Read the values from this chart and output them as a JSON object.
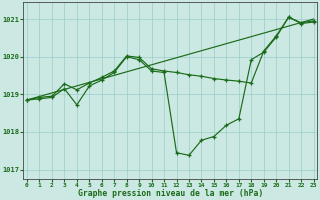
{
  "title": "Graphe pression niveau de la mer (hPa)",
  "bg_color": "#cce8e2",
  "grid_color": "#99cccc",
  "line_color": "#1a6b1a",
  "xlim": [
    -0.3,
    23.3
  ],
  "ylim": [
    1016.75,
    1021.45
  ],
  "yticks": [
    1017,
    1018,
    1019,
    1020,
    1021
  ],
  "xticks": [
    0,
    1,
    2,
    3,
    4,
    5,
    6,
    7,
    8,
    9,
    10,
    11,
    12,
    13,
    14,
    15,
    16,
    17,
    18,
    19,
    20,
    21,
    22,
    23
  ],
  "series_main": [
    [
      0,
      1018.85
    ],
    [
      1,
      1018.88
    ],
    [
      2,
      1018.92
    ],
    [
      3,
      1019.15
    ],
    [
      4,
      1018.72
    ],
    [
      5,
      1019.22
    ],
    [
      6,
      1019.38
    ],
    [
      7,
      1019.58
    ],
    [
      8,
      1020.0
    ],
    [
      9,
      1019.92
    ],
    [
      10,
      1019.62
    ],
    [
      11,
      1019.58
    ],
    [
      12,
      1017.45
    ],
    [
      13,
      1017.38
    ],
    [
      14,
      1017.78
    ],
    [
      15,
      1017.88
    ],
    [
      16,
      1018.18
    ],
    [
      17,
      1018.35
    ],
    [
      18,
      1019.92
    ],
    [
      19,
      1020.12
    ],
    [
      20,
      1020.52
    ],
    [
      21,
      1021.05
    ],
    [
      22,
      1020.88
    ],
    [
      23,
      1020.92
    ]
  ],
  "series_smooth": [
    [
      0,
      1018.85
    ],
    [
      1,
      1018.92
    ],
    [
      2,
      1018.95
    ],
    [
      3,
      1019.28
    ],
    [
      4,
      1019.12
    ],
    [
      5,
      1019.3
    ],
    [
      6,
      1019.45
    ],
    [
      7,
      1019.62
    ],
    [
      8,
      1020.02
    ],
    [
      9,
      1019.98
    ],
    [
      10,
      1019.68
    ],
    [
      11,
      1019.62
    ],
    [
      12,
      1019.58
    ],
    [
      13,
      1019.52
    ],
    [
      14,
      1019.48
    ],
    [
      15,
      1019.42
    ],
    [
      16,
      1019.38
    ],
    [
      17,
      1019.35
    ],
    [
      18,
      1019.3
    ],
    [
      19,
      1020.15
    ],
    [
      20,
      1020.55
    ],
    [
      21,
      1021.05
    ],
    [
      22,
      1020.9
    ],
    [
      23,
      1020.95
    ]
  ],
  "series_line": [
    [
      0,
      1018.85
    ],
    [
      23,
      1021.0
    ]
  ]
}
